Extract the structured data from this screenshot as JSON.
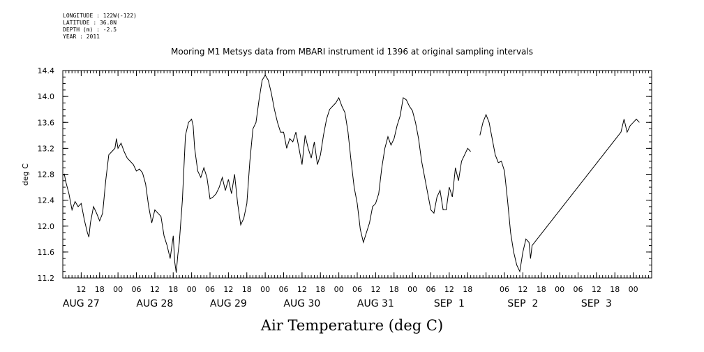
{
  "header": {
    "meta_lines": [
      "LONGITUDE : 122W(-122)",
      "LATITUDE : 36.8N",
      "DEPTH (m) : -2.5",
      "YEAR : 2011"
    ]
  },
  "chart_data": {
    "type": "line",
    "title": "Mooring M1 Metsys data from MBARI instrument id 1396 at original sampling intervals",
    "xlabel": "Air Temperature (deg C)",
    "ylabel": "deg C",
    "ylim": [
      11.2,
      14.4
    ],
    "yticks": [
      11.2,
      11.6,
      12.0,
      12.4,
      12.8,
      13.2,
      13.6,
      14.0,
      14.4
    ],
    "ytick_labels": [
      "11.2",
      "11.6",
      "12.0",
      "12.4",
      "12.8",
      "13.2",
      "13.6",
      "14.0",
      "14.4"
    ],
    "xlim": [
      "2011-08-26 06:00",
      "2011-09-03 06:00"
    ],
    "hour_ticks": [
      {
        "t": "2011-08-26 12:00",
        "label": "12"
      },
      {
        "t": "2011-08-26 18:00",
        "label": "18"
      },
      {
        "t": "2011-08-27 00:00",
        "label": "00"
      },
      {
        "t": "2011-08-27 06:00",
        "label": "06"
      },
      {
        "t": "2011-08-27 12:00",
        "label": "12"
      },
      {
        "t": "2011-08-27 18:00",
        "label": "18"
      },
      {
        "t": "2011-08-28 00:00",
        "label": "00"
      },
      {
        "t": "2011-08-28 06:00",
        "label": "06"
      },
      {
        "t": "2011-08-28 12:00",
        "label": "12"
      },
      {
        "t": "2011-08-28 18:00",
        "label": "18"
      },
      {
        "t": "2011-08-29 00:00",
        "label": "00"
      },
      {
        "t": "2011-08-29 06:00",
        "label": "06"
      },
      {
        "t": "2011-08-29 12:00",
        "label": "12"
      },
      {
        "t": "2011-08-29 18:00",
        "label": "18"
      },
      {
        "t": "2011-08-30 00:00",
        "label": "00"
      },
      {
        "t": "2011-08-30 06:00",
        "label": "06"
      },
      {
        "t": "2011-08-30 12:00",
        "label": "12"
      },
      {
        "t": "2011-08-30 18:00",
        "label": "18"
      },
      {
        "t": "2011-08-31 00:00",
        "label": "00"
      },
      {
        "t": "2011-08-31 06:00",
        "label": "06"
      },
      {
        "t": "2011-08-31 12:00",
        "label": "12"
      },
      {
        "t": "2011-08-31 18:00",
        "label": "18"
      },
      {
        "t": "2011-09-01 00:00",
        "label": ""
      },
      {
        "t": "2011-09-01 06:00",
        "label": "06"
      },
      {
        "t": "2011-09-01 12:00",
        "label": "12"
      },
      {
        "t": "2011-09-01 18:00",
        "label": "18"
      },
      {
        "t": "2011-09-02 00:00",
        "label": "00"
      },
      {
        "t": "2011-09-02 06:00",
        "label": "06"
      },
      {
        "t": "2011-09-02 12:00",
        "label": "12"
      },
      {
        "t": "2011-09-02 18:00",
        "label": "18"
      },
      {
        "t": "2011-09-03 00:00",
        "label": "00"
      }
    ],
    "day_labels": [
      {
        "t": "2011-08-26 12:00",
        "label": "AUG 27"
      },
      {
        "t": "2011-08-27 12:00",
        "label": "AUG 28"
      },
      {
        "t": "2011-08-28 12:00",
        "label": "AUG 29"
      },
      {
        "t": "2011-08-29 12:00",
        "label": "AUG 30"
      },
      {
        "t": "2011-08-30 12:00",
        "label": "AUG 31"
      },
      {
        "t": "2011-08-31 12:00",
        "label": "SEP  1"
      },
      {
        "t": "2011-09-01 12:00",
        "label": "SEP  2"
      },
      {
        "t": "2011-09-02 12:00",
        "label": "SEP  3"
      }
    ],
    "grid": false,
    "series": [
      {
        "segments": [
          [
            [
              "2011-08-26 06:00",
              12.78
            ],
            [
              "2011-08-26 06:30",
              12.8
            ],
            [
              "2011-08-26 07:00",
              12.68
            ],
            [
              "2011-08-26 08:00",
              12.5
            ],
            [
              "2011-08-26 09:00",
              12.25
            ],
            [
              "2011-08-26 10:00",
              12.38
            ],
            [
              "2011-08-26 11:00",
              12.3
            ],
            [
              "2011-08-26 12:00",
              12.35
            ],
            [
              "2011-08-26 13:00",
              12.1
            ],
            [
              "2011-08-26 14:00",
              11.9
            ],
            [
              "2011-08-26 14:30",
              11.83
            ],
            [
              "2011-08-26 15:00",
              12.05
            ],
            [
              "2011-08-26 16:00",
              12.3
            ],
            [
              "2011-08-26 17:00",
              12.2
            ],
            [
              "2011-08-26 18:00",
              12.08
            ],
            [
              "2011-08-26 19:00",
              12.2
            ],
            [
              "2011-08-26 20:00",
              12.7
            ],
            [
              "2011-08-26 21:00",
              13.1
            ],
            [
              "2011-08-26 22:00",
              13.15
            ],
            [
              "2011-08-26 23:00",
              13.2
            ],
            [
              "2011-08-26 23:30",
              13.35
            ],
            [
              "2011-08-27 00:00",
              13.2
            ],
            [
              "2011-08-27 01:00",
              13.28
            ],
            [
              "2011-08-27 02:00",
              13.15
            ],
            [
              "2011-08-27 03:00",
              13.05
            ],
            [
              "2011-08-27 04:00",
              13.0
            ],
            [
              "2011-08-27 05:00",
              12.95
            ],
            [
              "2011-08-27 06:00",
              12.85
            ],
            [
              "2011-08-27 07:00",
              12.88
            ],
            [
              "2011-08-27 08:00",
              12.82
            ],
            [
              "2011-08-27 09:00",
              12.65
            ],
            [
              "2011-08-27 10:00",
              12.3
            ],
            [
              "2011-08-27 11:00",
              12.05
            ],
            [
              "2011-08-27 12:00",
              12.25
            ],
            [
              "2011-08-27 13:00",
              12.2
            ],
            [
              "2011-08-27 14:00",
              12.15
            ],
            [
              "2011-08-27 15:00",
              11.85
            ],
            [
              "2011-08-27 16:00",
              11.7
            ],
            [
              "2011-08-27 17:00",
              11.5
            ],
            [
              "2011-08-27 18:00",
              11.85
            ],
            [
              "2011-08-27 18:30",
              11.45
            ],
            [
              "2011-08-27 19:00",
              11.28
            ],
            [
              "2011-08-27 19:30",
              11.55
            ],
            [
              "2011-08-27 20:00",
              11.75
            ],
            [
              "2011-08-27 21:00",
              12.4
            ],
            [
              "2011-08-27 22:00",
              13.4
            ],
            [
              "2011-08-27 23:00",
              13.6
            ],
            [
              "2011-08-28 00:00",
              13.65
            ],
            [
              "2011-08-28 00:30",
              13.55
            ],
            [
              "2011-08-28 01:00",
              13.2
            ],
            [
              "2011-08-28 02:00",
              12.85
            ],
            [
              "2011-08-28 03:00",
              12.75
            ],
            [
              "2011-08-28 04:00",
              12.9
            ],
            [
              "2011-08-28 05:00",
              12.75
            ],
            [
              "2011-08-28 06:00",
              12.42
            ],
            [
              "2011-08-28 07:00",
              12.45
            ],
            [
              "2011-08-28 08:00",
              12.5
            ],
            [
              "2011-08-28 09:00",
              12.6
            ],
            [
              "2011-08-28 10:00",
              12.75
            ],
            [
              "2011-08-28 11:00",
              12.55
            ],
            [
              "2011-08-28 12:00",
              12.72
            ],
            [
              "2011-08-28 13:00",
              12.5
            ],
            [
              "2011-08-28 14:00",
              12.8
            ],
            [
              "2011-08-28 15:00",
              12.35
            ],
            [
              "2011-08-28 16:00",
              12.02
            ],
            [
              "2011-08-28 17:00",
              12.12
            ],
            [
              "2011-08-28 18:00",
              12.35
            ],
            [
              "2011-08-28 19:00",
              13.0
            ],
            [
              "2011-08-28 20:00",
              13.5
            ],
            [
              "2011-08-28 21:00",
              13.6
            ],
            [
              "2011-08-28 22:00",
              13.95
            ],
            [
              "2011-08-28 23:00",
              14.25
            ],
            [
              "2011-08-29 00:00",
              14.33
            ],
            [
              "2011-08-29 01:00",
              14.25
            ],
            [
              "2011-08-29 02:00",
              14.05
            ],
            [
              "2011-08-29 03:00",
              13.8
            ],
            [
              "2011-08-29 04:00",
              13.6
            ],
            [
              "2011-08-29 05:00",
              13.45
            ],
            [
              "2011-08-29 06:00",
              13.45
            ],
            [
              "2011-08-29 07:00",
              13.2
            ],
            [
              "2011-08-29 08:00",
              13.35
            ],
            [
              "2011-08-29 09:00",
              13.3
            ],
            [
              "2011-08-29 10:00",
              13.45
            ],
            [
              "2011-08-29 11:00",
              13.2
            ],
            [
              "2011-08-29 12:00",
              12.95
            ],
            [
              "2011-08-29 13:00",
              13.4
            ],
            [
              "2011-08-29 14:00",
              13.2
            ],
            [
              "2011-08-29 15:00",
              13.05
            ],
            [
              "2011-08-29 16:00",
              13.3
            ],
            [
              "2011-08-29 17:00",
              12.95
            ],
            [
              "2011-08-29 18:00",
              13.1
            ],
            [
              "2011-08-29 19:00",
              13.4
            ],
            [
              "2011-08-29 20:00",
              13.65
            ],
            [
              "2011-08-29 21:00",
              13.8
            ],
            [
              "2011-08-29 22:00",
              13.85
            ],
            [
              "2011-08-29 23:00",
              13.9
            ],
            [
              "2011-08-30 00:00",
              13.98
            ],
            [
              "2011-08-30 01:00",
              13.85
            ],
            [
              "2011-08-30 02:00",
              13.75
            ],
            [
              "2011-08-30 03:00",
              13.45
            ],
            [
              "2011-08-30 04:00",
              13.0
            ],
            [
              "2011-08-30 05:00",
              12.6
            ],
            [
              "2011-08-30 06:00",
              12.35
            ],
            [
              "2011-08-30 07:00",
              11.95
            ],
            [
              "2011-08-30 08:00",
              11.75
            ],
            [
              "2011-08-30 09:00",
              11.9
            ],
            [
              "2011-08-30 10:00",
              12.05
            ],
            [
              "2011-08-30 11:00",
              12.3
            ],
            [
              "2011-08-30 12:00",
              12.35
            ],
            [
              "2011-08-30 13:00",
              12.5
            ],
            [
              "2011-08-30 14:00",
              12.9
            ],
            [
              "2011-08-30 15:00",
              13.2
            ],
            [
              "2011-08-30 16:00",
              13.38
            ],
            [
              "2011-08-30 17:00",
              13.25
            ],
            [
              "2011-08-30 18:00",
              13.35
            ],
            [
              "2011-08-30 19:00",
              13.55
            ],
            [
              "2011-08-30 20:00",
              13.7
            ],
            [
              "2011-08-30 21:00",
              13.98
            ],
            [
              "2011-08-30 22:00",
              13.95
            ],
            [
              "2011-08-30 23:00",
              13.85
            ],
            [
              "2011-08-31 00:00",
              13.78
            ],
            [
              "2011-08-31 01:00",
              13.6
            ],
            [
              "2011-08-31 02:00",
              13.35
            ],
            [
              "2011-08-31 03:00",
              13.0
            ],
            [
              "2011-08-31 04:00",
              12.75
            ],
            [
              "2011-08-31 05:00",
              12.5
            ],
            [
              "2011-08-31 06:00",
              12.25
            ],
            [
              "2011-08-31 07:00",
              12.2
            ],
            [
              "2011-08-31 08:00",
              12.45
            ],
            [
              "2011-08-31 09:00",
              12.55
            ],
            [
              "2011-08-31 10:00",
              12.25
            ],
            [
              "2011-08-31 11:00",
              12.25
            ],
            [
              "2011-08-31 12:00",
              12.6
            ],
            [
              "2011-08-31 13:00",
              12.45
            ],
            [
              "2011-08-31 14:00",
              12.9
            ],
            [
              "2011-08-31 15:00",
              12.7
            ],
            [
              "2011-08-31 16:00",
              13.0
            ],
            [
              "2011-08-31 17:00",
              13.1
            ],
            [
              "2011-08-31 18:00",
              13.2
            ],
            [
              "2011-08-31 19:00",
              13.15
            ]
          ],
          [
            [
              "2011-08-31 22:00",
              13.4
            ],
            [
              "2011-08-31 23:00",
              13.6
            ],
            [
              "2011-09-01 00:00",
              13.72
            ],
            [
              "2011-09-01 01:00",
              13.6
            ],
            [
              "2011-09-01 02:00",
              13.35
            ],
            [
              "2011-09-01 03:00",
              13.1
            ],
            [
              "2011-09-01 04:00",
              12.98
            ],
            [
              "2011-09-01 05:00",
              13.0
            ],
            [
              "2011-09-01 06:00",
              12.85
            ],
            [
              "2011-09-01 07:00",
              12.4
            ],
            [
              "2011-09-01 08:00",
              11.9
            ],
            [
              "2011-09-01 09:00",
              11.6
            ],
            [
              "2011-09-01 10:00",
              11.4
            ],
            [
              "2011-09-01 11:00",
              11.3
            ],
            [
              "2011-09-01 12:00",
              11.6
            ],
            [
              "2011-09-01 13:00",
              11.8
            ],
            [
              "2011-09-01 14:00",
              11.75
            ],
            [
              "2011-09-01 14:30",
              11.5
            ],
            [
              "2011-09-01 15:00",
              11.7
            ],
            [
              "2011-09-02 20:00",
              13.45
            ],
            [
              "2011-09-02 21:00",
              13.65
            ],
            [
              "2011-09-02 22:00",
              13.45
            ],
            [
              "2011-09-02 23:00",
              13.55
            ],
            [
              "2011-09-03 00:00",
              13.6
            ],
            [
              "2011-09-03 01:00",
              13.65
            ],
            [
              "2011-09-03 02:00",
              13.6
            ]
          ]
        ]
      }
    ]
  }
}
